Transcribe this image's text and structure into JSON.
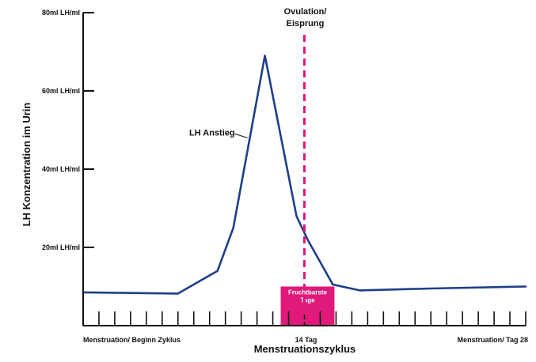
{
  "chart_data": {
    "type": "line",
    "title": "",
    "xlabel": "Menstruationszyklus",
    "ylabel": "LH Konzentration im Urin",
    "ylim": [
      0,
      80
    ],
    "xlim": [
      0,
      28
    ],
    "y_ticks": [
      {
        "value": 20,
        "label": "20ml LH/ml"
      },
      {
        "value": 40,
        "label": "40ml LH/ml"
      },
      {
        "value": 60,
        "label": "60ml LH/ml"
      },
      {
        "value": 80,
        "label": "80ml LH/ml"
      }
    ],
    "x_tick_count": 28,
    "x_labels": [
      {
        "x": 0,
        "label": "Menstruation/ Beginn Zyklus"
      },
      {
        "x": 14,
        "label": "14 Tag"
      },
      {
        "x": 28,
        "label": "Menstruation/ Tag 28"
      }
    ],
    "series": [
      {
        "color": "#1f3e8a",
        "x": [
          0,
          6,
          8.5,
          9.5,
          11.5,
          13.5,
          14.2,
          15.8,
          17.5,
          22,
          28
        ],
        "y": [
          8.5,
          8.2,
          14,
          25,
          69,
          28,
          22,
          10.5,
          9,
          9.5,
          10
        ]
      }
    ],
    "annotations": {
      "ovulation": {
        "label_line1": "Ovulation/",
        "label_line2": "Eisprung",
        "x": 14,
        "color": "#e0197a"
      },
      "lh_rise": {
        "label": "LH Anstieg",
        "x": 10.4,
        "y": 48
      },
      "fertile_window": {
        "label_line1": "Fruchtbarste",
        "label_line2": "Tage",
        "x_start": 12.5,
        "x_end": 15.9,
        "y_top": 10,
        "color": "#e0197a"
      }
    },
    "grid": false,
    "legend": "none",
    "colors": {
      "axis": "#111111",
      "line": "#1f3e8a",
      "accent": "#e0197a"
    }
  }
}
